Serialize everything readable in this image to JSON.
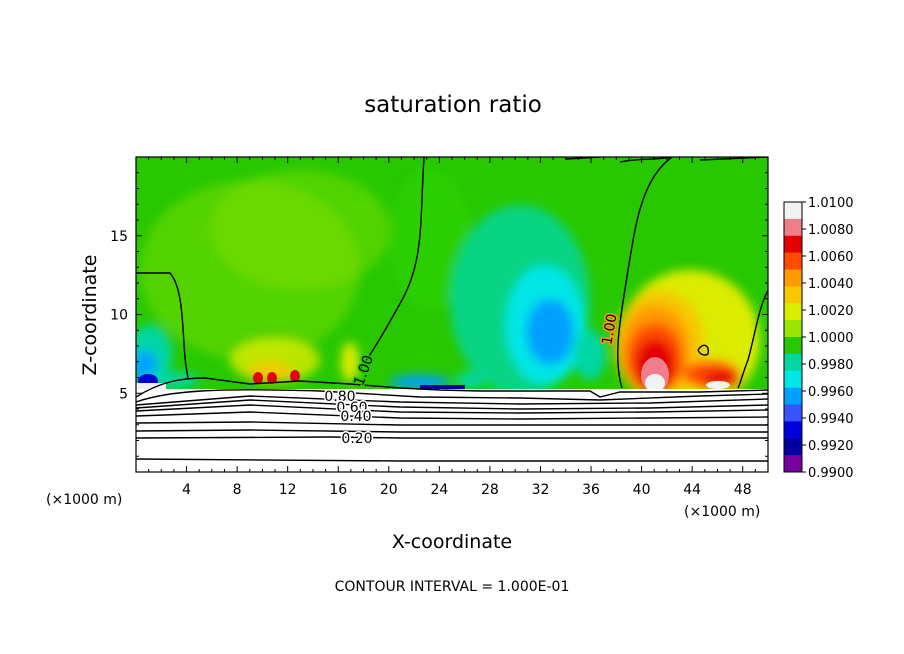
{
  "chart_data": {
    "type": "heatmap",
    "title": "saturation ratio",
    "xlabel": "X-coordinate",
    "ylabel": "Z-coordinate",
    "x_unit_left": "(×1000 m)",
    "x_unit_right": "(×1000 m)",
    "xlim": [
      0,
      50
    ],
    "ylim": [
      0,
      20
    ],
    "x_ticks": [
      4,
      8,
      12,
      16,
      20,
      24,
      28,
      32,
      36,
      40,
      44,
      48
    ],
    "x_tick_labels": [
      "4",
      "8",
      "12",
      "16",
      "20",
      "24",
      "28",
      "32",
      "36",
      "40",
      "44",
      "48"
    ],
    "y_ticks": [
      5,
      10,
      15
    ],
    "y_tick_labels": [
      "5",
      "10",
      "15"
    ],
    "colorbar": {
      "min": 0.99,
      "max": 1.01,
      "labels": [
        "1.0100",
        "1.0080",
        "1.0060",
        "1.0040",
        "1.0020",
        "1.0000",
        "0.9980",
        "0.9960",
        "0.9940",
        "0.9920",
        "0.9900"
      ],
      "colors": [
        "#f2f2f2",
        "#f07d8c",
        "#e30000",
        "#ff4c00",
        "#ff9a00",
        "#f5c800",
        "#dcec00",
        "#9ae600",
        "#27c800",
        "#00d7a5",
        "#00e6e6",
        "#00a0ff",
        "#3755ff",
        "#0000dc",
        "#0000a0",
        "#7800a0"
      ]
    },
    "contour_interval_text": "CONTOUR INTERVAL = 1.000E-01",
    "contour_labels": [
      "1.00",
      "1.00",
      "0.80",
      "0.60",
      "0.40",
      "0.20"
    ],
    "field_features": [
      {
        "x": 32.5,
        "z": 8.8,
        "value": 0.9944
      },
      {
        "x": 40.8,
        "z": 7.0,
        "value": 1.0095
      },
      {
        "x": 11.0,
        "z": 6.3,
        "value": 1.0035
      },
      {
        "x": 0.6,
        "z": 6.2,
        "value": 0.9925
      },
      {
        "x": 16.0,
        "z": 13.0,
        "value": 1.0008
      }
    ]
  }
}
